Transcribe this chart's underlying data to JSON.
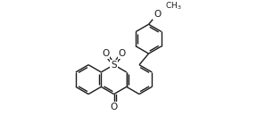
{
  "bg_color": "#ffffff",
  "line_color": "#1a1a1a",
  "line_width": 1.0,
  "figsize": [
    2.88,
    1.48
  ],
  "dpi": 100,
  "xlim": [
    -4.5,
    6.5
  ],
  "ylim": [
    -3.5,
    4.5
  ]
}
